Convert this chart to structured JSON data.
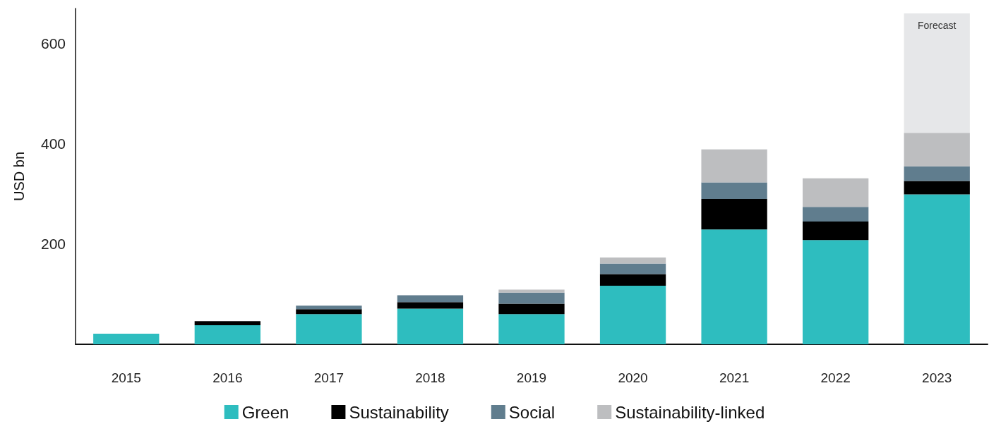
{
  "chart_data": {
    "type": "bar",
    "stacked": true,
    "ylabel": "USD bn",
    "categories": [
      "2015",
      "2016",
      "2017",
      "2018",
      "2019",
      "2020",
      "2021",
      "2022",
      "2023"
    ],
    "series": [
      {
        "name": "Green",
        "color": "#2ebdbf",
        "values": [
          21,
          38,
          60,
          71,
          60,
          117,
          229,
          208,
          299
        ]
      },
      {
        "name": "Sustainability",
        "color": "#000000",
        "values": [
          null,
          8,
          10,
          13,
          21,
          23,
          61,
          37,
          27
        ]
      },
      {
        "name": "Social",
        "color": "#607d8e",
        "values": [
          null,
          null,
          7,
          14,
          22,
          21,
          33,
          29,
          29
        ]
      },
      {
        "name": "Sustainability-linked",
        "color": "#bdbec0",
        "values": [
          null,
          null,
          null,
          null,
          6,
          12,
          66,
          57,
          67
        ]
      },
      {
        "color": "#e6e7e9",
        "values": [
          null,
          null,
          null,
          null,
          null,
          null,
          null,
          null,
          238
        ]
      }
    ],
    "annotations": [
      {
        "text": "Forecast",
        "x": "2023",
        "y": 660
      }
    ],
    "ylim": [
      0,
      670
    ],
    "yticks": [
      200,
      400,
      600
    ],
    "grid": false,
    "legend": "bottom"
  }
}
